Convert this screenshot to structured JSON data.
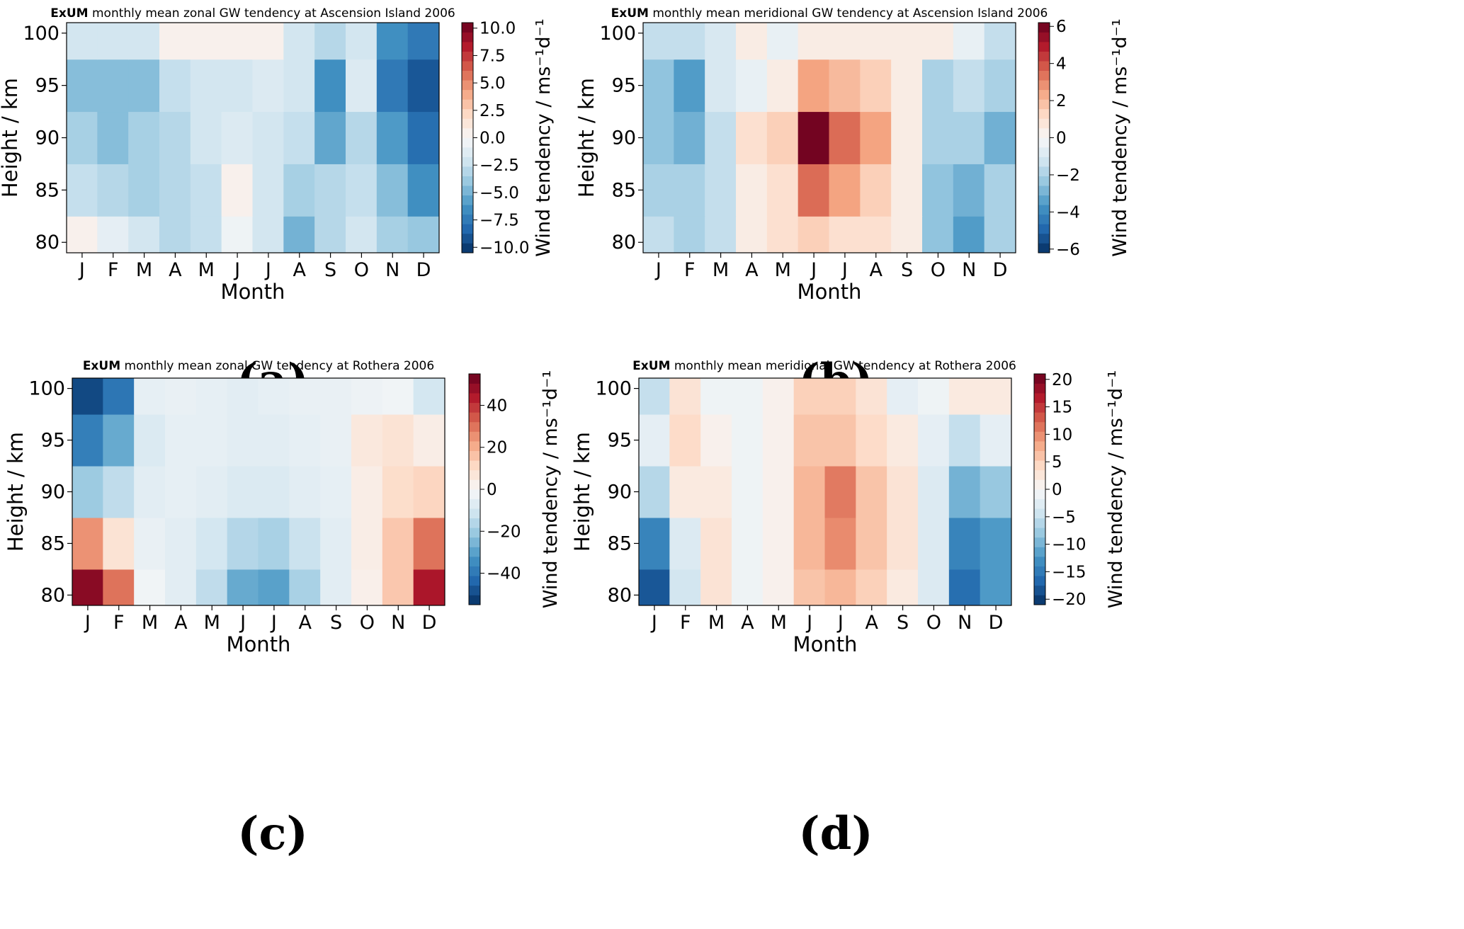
{
  "figure": {
    "captions": [
      "(a)",
      "(b)",
      "(c)",
      "(d)"
    ]
  },
  "colormap": [
    "#053061",
    "#2166ac",
    "#4393c3",
    "#92c5de",
    "#d1e5f0",
    "#f7f7f7",
    "#fddbc7",
    "#f4a582",
    "#d6604d",
    "#b2182b",
    "#67001f"
  ],
  "chart_data": [
    {
      "type": "heatmap",
      "panel_label": "(a)",
      "title_bold": "ExUM",
      "title_rest": "monthly mean zonal GW tendency at Ascension Island 2006",
      "xlabel": "Month",
      "ylabel": "Height / km",
      "colorbar_label": "Wind tendency / ms⁻¹d⁻¹",
      "x_categories": [
        "J",
        "F",
        "M",
        "A",
        "M",
        "J",
        "J",
        "A",
        "S",
        "O",
        "N",
        "D"
      ],
      "y_ticks": [
        "100",
        "95",
        "90",
        "85",
        "80"
      ],
      "y_tick_values": [
        100,
        95,
        90,
        85,
        80
      ],
      "ylim": [
        79,
        101
      ],
      "heights": [
        80,
        85,
        90,
        95,
        100
      ],
      "cbar_ticks": [
        "10.0",
        "7.5",
        "5.0",
        "2.5",
        "0.0",
        "−2.5",
        "−5.0",
        "−7.5",
        "−10.0"
      ],
      "cbar_tick_values": [
        10,
        7.5,
        5,
        2.5,
        0,
        -2.5,
        -5,
        -7.5,
        -10
      ],
      "vlim": [
        -10.5,
        10.5
      ],
      "z_by_height": [
        [
          0.5,
          -1.0,
          -2.0,
          -3.0,
          -2.5,
          -0.5,
          -2.0,
          -5.0,
          -3.0,
          -2.0,
          -3.5,
          -4.0
        ],
        [
          -2.5,
          -3.0,
          -3.5,
          -3.0,
          -2.5,
          0.5,
          -2.0,
          -3.5,
          -3.0,
          -2.5,
          -4.5,
          -6.5
        ],
        [
          -3.5,
          -4.5,
          -3.5,
          -3.0,
          -2.0,
          -1.5,
          -2.0,
          -2.5,
          -5.5,
          -3.0,
          -6.0,
          -8.0
        ],
        [
          -4.5,
          -4.5,
          -4.5,
          -2.5,
          -2.0,
          -2.0,
          -1.5,
          -2.0,
          -6.5,
          -1.5,
          -7.5,
          -9.0
        ],
        [
          -2.0,
          -2.0,
          -2.0,
          0.5,
          0.5,
          0.5,
          0.5,
          -2.0,
          -3.0,
          -2.0,
          -6.5,
          -7.5
        ]
      ]
    },
    {
      "type": "heatmap",
      "panel_label": "(b)",
      "title_bold": "ExUM",
      "title_rest": "monthly mean meridional GW tendency at Ascension Island 2006",
      "xlabel": "Month",
      "ylabel": "Height / km",
      "colorbar_label": "Wind tendency / ms⁻¹d⁻¹",
      "x_categories": [
        "J",
        "F",
        "M",
        "A",
        "M",
        "J",
        "J",
        "A",
        "S",
        "O",
        "N",
        "D"
      ],
      "y_ticks": [
        "100",
        "95",
        "90",
        "85",
        "80"
      ],
      "y_tick_values": [
        100,
        95,
        90,
        85,
        80
      ],
      "ylim": [
        79,
        101
      ],
      "heights": [
        80,
        85,
        90,
        95,
        100
      ],
      "cbar_ticks": [
        "6",
        "4",
        "2",
        "0",
        "−2",
        "−4",
        "−6"
      ],
      "cbar_tick_values": [
        6,
        4,
        2,
        0,
        -2,
        -4,
        -6
      ],
      "vlim": [
        -6.2,
        6.2
      ],
      "z_by_height": [
        [
          -1.5,
          -2.0,
          -1.5,
          0.5,
          1.0,
          1.5,
          1.0,
          1.0,
          0.5,
          -2.5,
          -3.5,
          -2.0
        ],
        [
          -2.0,
          -2.0,
          -1.5,
          0.5,
          1.0,
          3.5,
          2.5,
          1.5,
          0.5,
          -2.5,
          -3.0,
          -2.0
        ],
        [
          -2.5,
          -3.0,
          -1.5,
          1.0,
          1.5,
          6.0,
          3.5,
          2.5,
          0.5,
          -2.0,
          -2.0,
          -3.0
        ],
        [
          -2.5,
          -3.5,
          -1.0,
          -0.5,
          0.5,
          2.5,
          2.0,
          1.5,
          0.5,
          -2.0,
          -1.5,
          -2.0
        ],
        [
          -1.5,
          -1.5,
          -1.0,
          0.5,
          -0.5,
          0.5,
          0.5,
          0.5,
          0.5,
          0.5,
          -0.5,
          -1.5
        ]
      ]
    },
    {
      "type": "heatmap",
      "panel_label": "(c)",
      "title_bold": "ExUM",
      "title_rest": "monthly mean zonal GW tendency at Rothera 2006",
      "xlabel": "Month",
      "ylabel": "Height / km",
      "colorbar_label": "Wind tendency / ms⁻¹d⁻¹",
      "x_categories": [
        "J",
        "F",
        "M",
        "A",
        "M",
        "J",
        "J",
        "A",
        "S",
        "O",
        "N",
        "D"
      ],
      "y_ticks": [
        "100",
        "95",
        "90",
        "85",
        "80"
      ],
      "y_tick_values": [
        100,
        95,
        90,
        85,
        80
      ],
      "ylim": [
        79,
        101
      ],
      "heights": [
        80,
        85,
        90,
        95,
        100
      ],
      "cbar_ticks": [
        "40",
        "20",
        "0",
        "−20",
        "−40"
      ],
      "cbar_tick_values": [
        40,
        20,
        0,
        -20,
        -40
      ],
      "vlim": [
        -55,
        55
      ],
      "z_by_height": [
        [
          50,
          30,
          -2,
          -6,
          -14,
          -28,
          -30,
          -18,
          -6,
          3,
          15,
          45
        ],
        [
          25,
          8,
          -4,
          -6,
          -10,
          -16,
          -18,
          -12,
          -6,
          4,
          15,
          30
        ],
        [
          -20,
          -14,
          -6,
          -5,
          -6,
          -8,
          -8,
          -6,
          -5,
          4,
          10,
          12
        ],
        [
          -38,
          -28,
          -8,
          -5,
          -5,
          -6,
          -6,
          -5,
          -4,
          6,
          8,
          4
        ],
        [
          -50,
          -40,
          -5,
          -4,
          -5,
          -6,
          -5,
          -4,
          -4,
          -3,
          -2,
          -10
        ]
      ]
    },
    {
      "type": "heatmap",
      "panel_label": "(d)",
      "title_bold": "ExUM",
      "title_rest": "monthly mean meridional GW tendency at Rothera 2006",
      "xlabel": "Month",
      "ylabel": "Height / km",
      "colorbar_label": "Wind tendency / ms⁻¹d⁻¹",
      "x_categories": [
        "J",
        "F",
        "M",
        "A",
        "M",
        "J",
        "J",
        "A",
        "S",
        "O",
        "N",
        "D"
      ],
      "y_ticks": [
        "100",
        "95",
        "90",
        "85",
        "80"
      ],
      "y_tick_values": [
        100,
        95,
        90,
        85,
        80
      ],
      "ylim": [
        79,
        101
      ],
      "heights": [
        80,
        85,
        90,
        95,
        100
      ],
      "cbar_ticks": [
        "20",
        "15",
        "10",
        "5",
        "0",
        "−5",
        "−10",
        "−15",
        "−20"
      ],
      "cbar_tick_values": [
        20,
        15,
        10,
        5,
        0,
        -5,
        -10,
        -15,
        -20
      ],
      "vlim": [
        -21,
        21
      ],
      "z_by_height": [
        [
          -18,
          -4,
          3,
          -1,
          1,
          6,
          7,
          5,
          2,
          -3,
          -16,
          -12
        ],
        [
          -14,
          -3,
          3,
          -1,
          1,
          7,
          10,
          6,
          3,
          -3,
          -14,
          -12
        ],
        [
          -6,
          2,
          2,
          -1,
          1,
          7,
          11,
          6,
          3,
          -3,
          -10,
          -8
        ],
        [
          -2,
          4,
          1,
          -1,
          1,
          6,
          6,
          4,
          2,
          -2,
          -5,
          -2
        ],
        [
          -5,
          3,
          -1,
          -1,
          1,
          5,
          5,
          3,
          -2,
          -1,
          2,
          2
        ]
      ]
    }
  ]
}
